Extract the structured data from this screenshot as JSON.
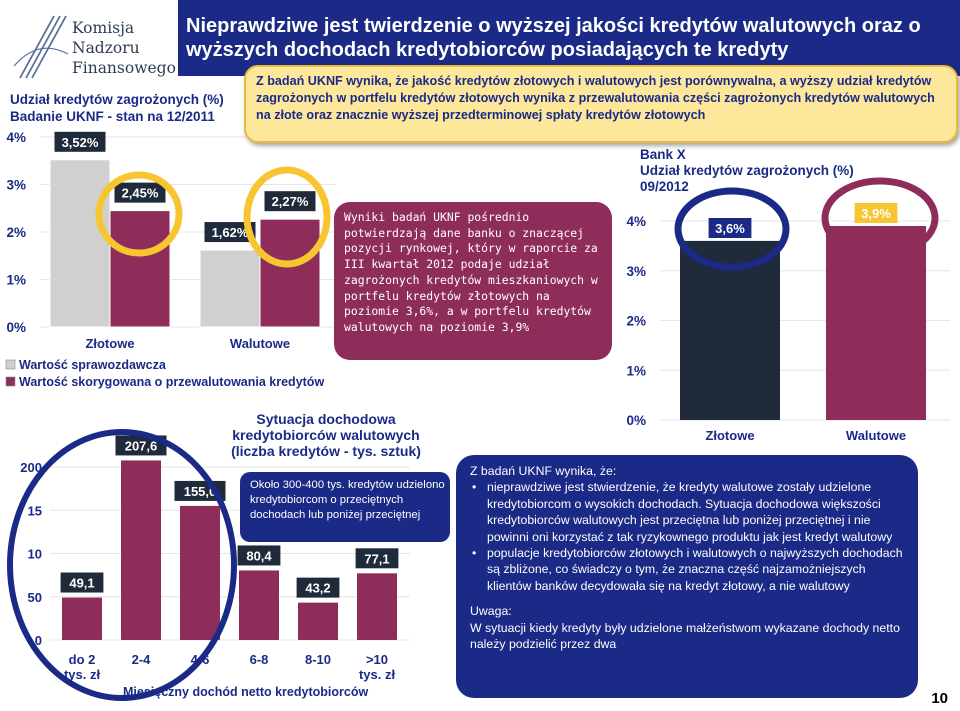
{
  "logo": {
    "lines": [
      "Komisja",
      "Nadzoru",
      "Finansowego"
    ]
  },
  "header": {
    "title": "Nieprawdziwe jest twierdzenie o wyższej jakości kredytów walutowych oraz o wyższych dochodach kredytobiorców posiadających te kredyty"
  },
  "callout_top": "Z badań UKNF wynika, że jakość kredytów złotowych i walutowych jest porównywalna, a wyższy udział kredytów zagrożonych w portfelu kredytów złotowych wynika z przewalutowania części zagrożonych kredytów walutowych na złote oraz znacznie wyższej przedterminowej spłaty kredytów złotowych",
  "bank_callout": "Wyniki badań UKNF pośrednio potwierdzają dane banku o znaczącej pozycji rynkowej, który w raporcie za III kwartał 2012 podaje udział zagrożonych kredytów mieszkaniowych w portfelu kredytów złotowych na poziomie 3,6%, a w portfelu kredytów walutowych na poziomie 3,9%",
  "income_callout": "Około 300-400 tys. kredytów udzielono kredytobiorcom o przeciętnych dochodach lub poniżej przeciętnej",
  "findings": {
    "intro": "Z badań UKNF wynika, że:",
    "bullets": [
      "nieprawdziwe jest stwierdzenie, że kredyty walutowe zostały udzielone kredytobiorcom o wysokich dochodach. Sytuacja dochodowa większości kredytobiorców walutowych jest przeciętna lub poniżej przeciętnej i nie powinni oni korzystać z tak ryzykownego produktu jak jest kredyt walutowy",
      "populacje kredytobiorców złotowych i walutowych o najwyższych dochodach są zbliżone, co świadczy o tym, że znaczna część najzamożniejszych klientów banków decydowała się na kredyt złotowy, a nie walutowy"
    ],
    "note_heading": "Uwaga:",
    "note_text": "W sytuacji kiedy kredyty były udzielone małżeństwom wykazane dochody netto należy podzielić przez dwa"
  },
  "page_number": "10",
  "colors": {
    "navy": "#1a2a86",
    "maroon": "#8f2d5a",
    "grey_bar": "#d0d0d0",
    "dark_bar": "#1f2a3a",
    "yellow": "#f7c530",
    "callout_yellow": "#fde79a"
  },
  "chart_data": [
    {
      "id": "uknf",
      "type": "bar",
      "title": "Udział kredytów zagrożonych (%)",
      "subtitle": "Badanie UKNF - stan na 12/2011",
      "categories": [
        "Złotowe",
        "Walutowe"
      ],
      "series": [
        {
          "name": "Wartość sprawozdawcza",
          "values": [
            3.52,
            1.62
          ],
          "labels": [
            "3,52%",
            "1,62%"
          ],
          "color": "#d0d0d0"
        },
        {
          "name": "Wartość skorygowana o przewalutowania kredytów",
          "values": [
            2.45,
            2.27
          ],
          "labels": [
            "2,45%",
            "2,27%"
          ],
          "color": "#8f2d5a"
        }
      ],
      "ylim": [
        0,
        4
      ],
      "ticks": [
        "0%",
        "1%",
        "2%",
        "3%",
        "4%"
      ]
    },
    {
      "id": "bank",
      "type": "bar",
      "title": "Bank X",
      "subtitle": "Udział kredytów zagrożonych (%)",
      "subtitle2": "09/2012",
      "categories": [
        "Złotowe",
        "Walutowe"
      ],
      "values": [
        3.6,
        3.9
      ],
      "labels": [
        "3,6%",
        "3,9%"
      ],
      "colors": [
        "#1f2a3a",
        "#8f2d5a"
      ],
      "ylim": [
        0,
        4
      ],
      "ticks": [
        "0%",
        "1%",
        "2%",
        "3%",
        "4%"
      ]
    },
    {
      "id": "income",
      "type": "bar",
      "title": "Sytuacja dochodowa kredytobiorców walutowych (liczba kredytów - tys. sztuk)",
      "title_lines": [
        "Sytuacja dochodowa",
        "kredytobiorców walutowych",
        "(liczba kredytów - tys. sztuk)"
      ],
      "categories": [
        "do 2 tys. zł",
        "2-4",
        "4-6",
        "6-8",
        "8-10",
        ">10 tys. zł"
      ],
      "category_lines": [
        [
          "do 2",
          "tys. zł"
        ],
        [
          "2-4"
        ],
        [
          "4-6"
        ],
        [
          "6-8"
        ],
        [
          "8-10"
        ],
        [
          ">10",
          "tys. zł"
        ]
      ],
      "values": [
        49.1,
        207.6,
        155.0,
        80.4,
        43.2,
        77.1
      ],
      "labels": [
        "49,1",
        "207,6",
        "155,0",
        "80,4",
        "43,2",
        "77,1"
      ],
      "xlabel": "Miesięczny dochód netto kredytobiorców",
      "color": "#8f2d5a",
      "ylim": [
        0,
        200
      ],
      "ticks": [
        "0",
        "50",
        "10",
        "15",
        "200"
      ]
    }
  ]
}
